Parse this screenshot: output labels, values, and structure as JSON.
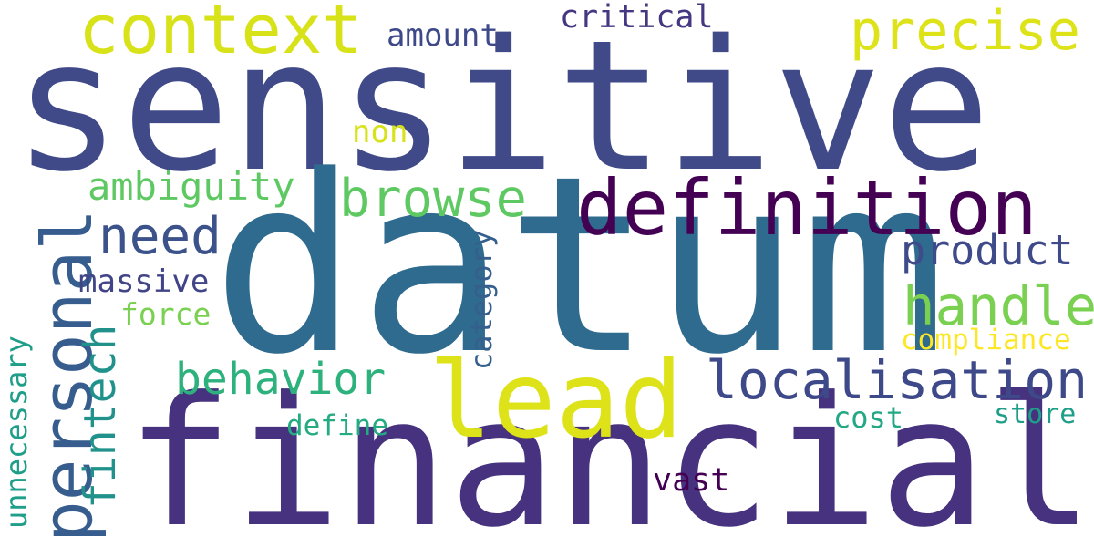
{
  "words": {
    "sensitive": {
      "text": "sensitive",
      "color": "#404a88"
    },
    "datum": {
      "text": "datum",
      "color": "#2f6b8e"
    },
    "financial": {
      "text": "financial",
      "color": "#46327e"
    },
    "personal": {
      "text": "personal",
      "color": "#365d8d"
    },
    "lead": {
      "text": "lead",
      "color": "#dde318"
    },
    "definition": {
      "text": "definition",
      "color": "#440154"
    },
    "context": {
      "text": "context",
      "color": "#d8e219"
    },
    "precise": {
      "text": "precise",
      "color": "#dde318"
    },
    "browse": {
      "text": "browse",
      "color": "#5ec962"
    },
    "localisation": {
      "text": "localisation",
      "color": "#3e4989"
    },
    "fintech": {
      "text": "fintech",
      "color": "#21918c"
    },
    "need": {
      "text": "need",
      "color": "#3b528b"
    },
    "handle": {
      "text": "handle",
      "color": "#7ad151"
    },
    "product": {
      "text": "product",
      "color": "#3e4a89"
    },
    "behavior": {
      "text": "behavior",
      "color": "#2db27d"
    },
    "ambiguity": {
      "text": "ambiguity",
      "color": "#5ec962"
    },
    "amount": {
      "text": "amount",
      "color": "#3e4989"
    },
    "critical": {
      "text": "critical",
      "color": "#453781"
    },
    "massive": {
      "text": "massive",
      "color": "#414487"
    },
    "force": {
      "text": "force",
      "color": "#7ad151"
    },
    "category": {
      "text": "category",
      "color": "#355f8d"
    },
    "unnecessary": {
      "text": "unnecessary",
      "color": "#1f9e89"
    },
    "compliance": {
      "text": "compliance",
      "color": "#fde725"
    },
    "non": {
      "text": "non",
      "color": "#d8e219"
    },
    "define": {
      "text": "define",
      "color": "#25ab82"
    },
    "cost": {
      "text": "cost",
      "color": "#22a884"
    },
    "store": {
      "text": "store",
      "color": "#1f9e89"
    },
    "vast": {
      "text": "vast",
      "color": "#440154"
    }
  }
}
